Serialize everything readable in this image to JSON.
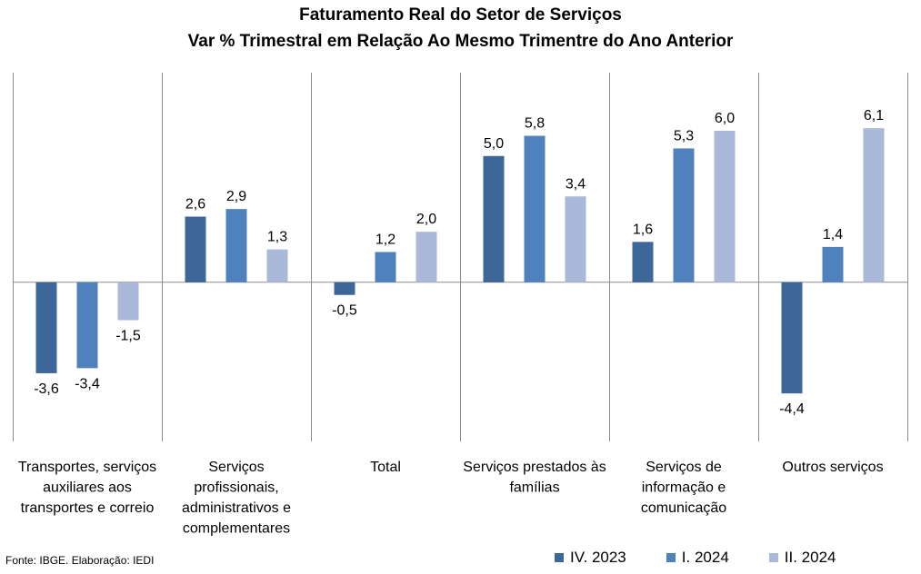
{
  "chart_data": {
    "type": "bar",
    "title": "Faturamento Real do Setor de Serviços",
    "subtitle": "Var % Trimestral em Relação Ao Mesmo Trimentre do Ano Anterior",
    "categories": [
      "Transportes, serviços auxiliares aos transportes e correio",
      "Serviços profissionais, administrativos e complementares",
      "Total",
      "Serviços prestados às famílias",
      "Serviços de informação e comunicação",
      "Outros serviços"
    ],
    "category_lines": [
      [
        "Transportes, serviços",
        "auxiliares aos",
        "transportes e correio"
      ],
      [
        "Serviços",
        "profissionais,",
        "administrativos e",
        "complementares"
      ],
      [
        "Total"
      ],
      [
        "Serviços prestados às",
        "famílias"
      ],
      [
        "Serviços de",
        "informação e",
        "comunicação"
      ],
      [
        "Outros serviços"
      ]
    ],
    "series": [
      {
        "name": "IV. 2023",
        "color": "#3d6699",
        "values": [
          -3.6,
          2.6,
          -0.5,
          5.0,
          1.6,
          -4.4
        ]
      },
      {
        "name": "I. 2024",
        "color": "#4f81bd",
        "values": [
          -3.4,
          2.9,
          1.2,
          5.8,
          5.3,
          1.4
        ]
      },
      {
        "name": "II. 2024",
        "color": "#aab9da",
        "values": [
          -1.5,
          1.3,
          2.0,
          3.4,
          6.0,
          6.1
        ]
      }
    ],
    "data_labels": [
      [
        "-3,6",
        "2,6",
        "-0,5",
        "5,0",
        "1,6",
        "-4,4"
      ],
      [
        "-3,4",
        "2,9",
        "1,2",
        "5,8",
        "5,3",
        "1,4"
      ],
      [
        "-1,5",
        "1,3",
        "2,0",
        "3,4",
        "6,0",
        "6,1"
      ]
    ],
    "ylim": [
      -6.3,
      8.3
    ],
    "legend_position": "bottom-right",
    "grid": false
  },
  "source_note": "Fonte: IBGE. Elaboração: IEDI"
}
